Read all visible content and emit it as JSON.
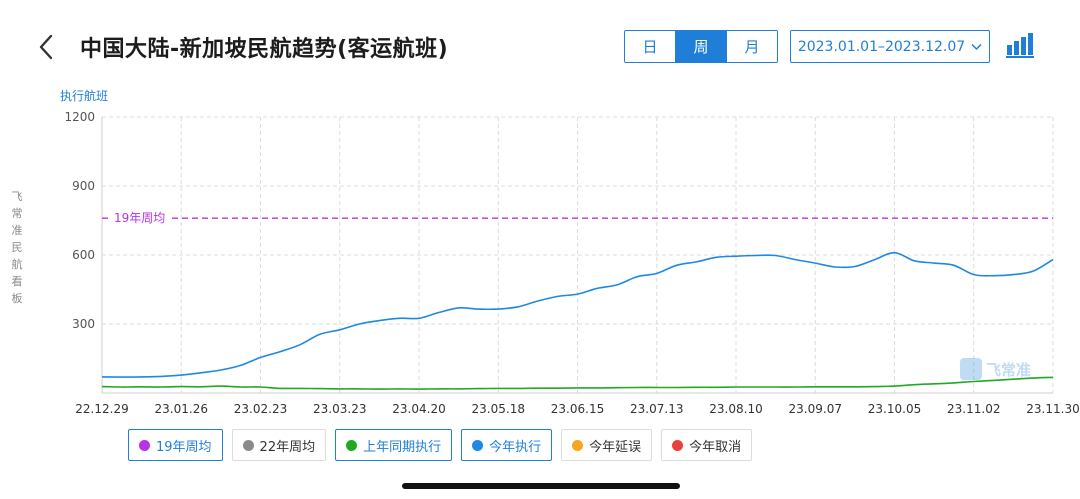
{
  "header": {
    "title": "中国大陆-新加坡民航趋势(客运航班)",
    "back_icon": "chevron-left-icon",
    "period_tabs": [
      {
        "label": "日",
        "active": false
      },
      {
        "label": "周",
        "active": true
      },
      {
        "label": "月",
        "active": false
      }
    ],
    "date_range": "2023.01.01–2023.12.07",
    "date_range_icon": "chevron-down-icon",
    "chart_toggle_icon": "bar-chart-icon"
  },
  "side_label": [
    "飞",
    "常",
    "准",
    "民",
    "航",
    "看",
    "板"
  ],
  "watermark": "飞常准",
  "colors": {
    "accent": "#1f7fd8",
    "current_year": "#1e88e5",
    "last_year": "#22a822",
    "avg_2019": "#b832e8",
    "avg_2022": "#8a8a8a",
    "delay": "#f5a623",
    "cancel": "#e8403a"
  },
  "chart_data": {
    "type": "line",
    "title": "",
    "ylabel": "执行航班",
    "xlabel": "",
    "ylim": [
      0,
      1200
    ],
    "yticks": [
      1200,
      900,
      600,
      300
    ],
    "grid": true,
    "x_tick_labels": [
      "22.12.29",
      "23.01.26",
      "23.02.23",
      "23.03.23",
      "23.04.20",
      "23.05.18",
      "23.06.15",
      "23.07.13",
      "23.08.10",
      "23.09.07",
      "23.10.05",
      "23.11.02",
      "23.11.30"
    ],
    "x": [
      "22.12.29",
      "23.01.05",
      "23.01.12",
      "23.01.19",
      "23.01.26",
      "23.02.02",
      "23.02.09",
      "23.02.16",
      "23.02.23",
      "23.03.02",
      "23.03.09",
      "23.03.16",
      "23.03.23",
      "23.03.30",
      "23.04.06",
      "23.04.13",
      "23.04.20",
      "23.04.27",
      "23.05.04",
      "23.05.11",
      "23.05.18",
      "23.05.25",
      "23.06.01",
      "23.06.08",
      "23.06.15",
      "23.06.22",
      "23.06.29",
      "23.07.06",
      "23.07.13",
      "23.07.20",
      "23.07.27",
      "23.08.03",
      "23.08.10",
      "23.08.17",
      "23.08.24",
      "23.08.31",
      "23.09.07",
      "23.09.14",
      "23.09.21",
      "23.09.28",
      "23.10.05",
      "23.10.12",
      "23.10.19",
      "23.10.26",
      "23.11.02",
      "23.11.09",
      "23.11.16",
      "23.11.23",
      "23.11.30"
    ],
    "series": [
      {
        "name": "今年执行",
        "values": [
          70,
          69,
          70,
          72,
          78,
          88,
          100,
          120,
          155,
          180,
          210,
          255,
          275,
          300,
          315,
          325,
          325,
          350,
          370,
          365,
          365,
          375,
          400,
          420,
          430,
          455,
          470,
          505,
          520,
          555,
          570,
          590,
          595,
          598,
          598,
          580,
          565,
          548,
          550,
          580,
          610,
          575,
          565,
          555,
          515,
          510,
          515,
          530,
          580
        ]
      },
      {
        "name": "上年同期执行",
        "values": [
          28,
          26,
          27,
          26,
          28,
          27,
          30,
          26,
          26,
          20,
          20,
          19,
          18,
          18,
          17,
          18,
          17,
          18,
          18,
          19,
          20,
          20,
          21,
          21,
          22,
          22,
          23,
          24,
          24,
          24,
          25,
          25,
          26,
          26,
          26,
          26,
          27,
          27,
          27,
          28,
          30,
          36,
          40,
          44,
          50,
          55,
          60,
          65,
          68
        ]
      },
      {
        "name": "19年周均",
        "constant": 760,
        "label": "19年周均"
      }
    ],
    "legend": {
      "placement": "bottom",
      "entries": [
        {
          "label": "19年周均",
          "color": "#b832e8",
          "on": true
        },
        {
          "label": "22年周均",
          "color": "#8a8a8a",
          "on": false
        },
        {
          "label": "上年同期执行",
          "color": "#22a822",
          "on": true
        },
        {
          "label": "今年执行",
          "color": "#1e88e5",
          "on": true
        },
        {
          "label": "今年延误",
          "color": "#f5a623",
          "on": false
        },
        {
          "label": "今年取消",
          "color": "#e8403a",
          "on": false
        }
      ]
    }
  }
}
